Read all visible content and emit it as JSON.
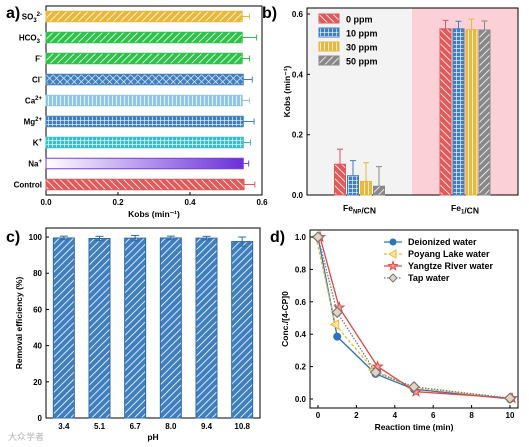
{
  "panels": {
    "a": "a)",
    "b": "b)",
    "c": "c)",
    "d": "d)"
  },
  "watermark": "大众学者",
  "chart_data": [
    {
      "panel": "a",
      "type": "bar",
      "orientation": "horizontal",
      "categories": [
        "SO3²⁻",
        "HCO3⁻",
        "F⁻",
        "Cl⁻",
        "Ca²⁺",
        "Mg²⁺",
        "K⁺",
        "Na⁺",
        "Control"
      ],
      "values": [
        0.545,
        0.545,
        0.545,
        0.548,
        0.545,
        0.548,
        0.548,
        0.548,
        0.55
      ],
      "errors": [
        0.02,
        0.04,
        0.02,
        0.025,
        0.02,
        0.03,
        0.02,
        0.015,
        0.03
      ],
      "colors": [
        "#e8b83a",
        "#2fc24a",
        "#2fc24a",
        "#3f7fc0",
        "#8fc7ea",
        "#3f7fc0",
        "#36c0cf",
        "#7a3de0",
        "#e05a5a"
      ],
      "xlabel": "Kobs (min⁻¹)",
      "xticks": [
        "0.0",
        "0.2",
        "0.4",
        "0.6"
      ],
      "xlim": [
        0,
        0.6
      ]
    },
    {
      "panel": "b",
      "type": "bar",
      "categories": [
        "FeNP/CN",
        "Fe1/CN"
      ],
      "series": [
        {
          "name": "0 ppm",
          "values": [
            0.102,
            0.551
          ],
          "errors": [
            0.05,
            0.028
          ],
          "color": "#e05a5a"
        },
        {
          "name": "10 ppm",
          "values": [
            0.064,
            0.551
          ],
          "errors": [
            0.05,
            0.025
          ],
          "color": "#3f7fc0"
        },
        {
          "name": "30 ppm",
          "values": [
            0.045,
            0.548
          ],
          "errors": [
            0.062,
            0.035
          ],
          "color": "#e8b83a"
        },
        {
          "name": "50 ppm",
          "values": [
            0.029,
            0.547
          ],
          "errors": [
            0.065,
            0.03
          ],
          "color": "#888888"
        }
      ],
      "ylabel": "Kobs (min⁻¹)",
      "yticks": [
        "0.0",
        "0.2",
        "0.4",
        "0.6"
      ],
      "ylim": [
        0,
        0.62
      ]
    },
    {
      "panel": "c",
      "type": "bar",
      "categories": [
        "3.4",
        "5.1",
        "6.7",
        "8.0",
        "9.4",
        "10.8"
      ],
      "values": [
        99.5,
        99.2,
        99.4,
        99.5,
        99.4,
        97.5
      ],
      "errors": [
        1.0,
        1.2,
        1.5,
        1.0,
        1.0,
        2.5
      ],
      "xlabel": "pH",
      "ylabel": "Removal efficiency (%)",
      "yticks": [
        "0",
        "20",
        "40",
        "60",
        "80",
        "100"
      ],
      "ylim": [
        0,
        105
      ]
    },
    {
      "panel": "d",
      "type": "line",
      "x": [
        0,
        1,
        3,
        5,
        10
      ],
      "series": [
        {
          "name": "Deionized water",
          "values": [
            1.0,
            0.385,
            0.155,
            0.06,
            0.0
          ],
          "color": "#2e73b8",
          "marker": "circle"
        },
        {
          "name": "Poyang Lake water",
          "values": [
            1.0,
            0.46,
            0.18,
            0.07,
            0.005
          ],
          "color": "#e8b83a",
          "marker": "triangle-left"
        },
        {
          "name": "Yangtze River water",
          "values": [
            1.0,
            0.565,
            0.2,
            0.045,
            0.005
          ],
          "color": "#e04848",
          "marker": "star"
        },
        {
          "name": "Tap water",
          "values": [
            1.0,
            0.535,
            0.165,
            0.075,
            0.005
          ],
          "color": "#777777",
          "marker": "diamond"
        }
      ],
      "xlabel": "Reaction time (min)",
      "ylabel": "Conc./[4-CP]0",
      "xticks": [
        "0",
        "2",
        "4",
        "6",
        "8",
        "10"
      ],
      "yticks": [
        "0.0",
        "0.2",
        "0.4",
        "0.6",
        "0.8",
        "1.0"
      ],
      "xlim": [
        0,
        10
      ],
      "ylim": [
        0,
        1.0
      ]
    }
  ]
}
